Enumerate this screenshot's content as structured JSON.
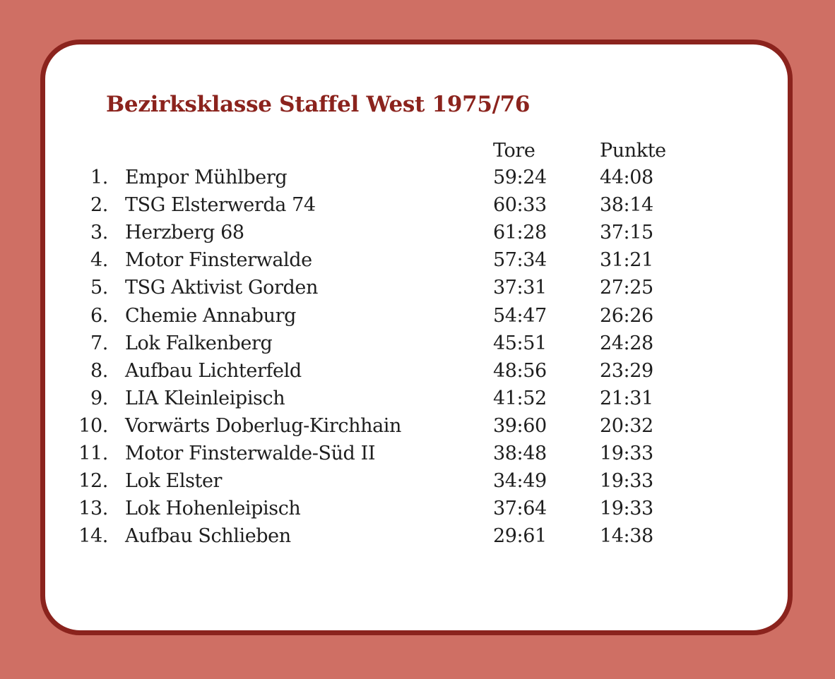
{
  "title": "Bezirksklasse Staffel West 1975/76",
  "columns": {
    "goals": "Tore",
    "points": "Punkte"
  },
  "table": [
    {
      "rank": "1.",
      "team": "Empor Mühlberg",
      "goals": "59:24",
      "points": "44:08"
    },
    {
      "rank": "2.",
      "team": "TSG Elsterwerda 74",
      "goals": "60:33",
      "points": "38:14"
    },
    {
      "rank": "3.",
      "team": "Herzberg 68",
      "goals": "61:28",
      "points": "37:15"
    },
    {
      "rank": "4.",
      "team": "Motor Finsterwalde",
      "goals": "57:34",
      "points": "31:21"
    },
    {
      "rank": "5.",
      "team": "TSG Aktivist Gorden",
      "goals": "37:31",
      "points": "27:25"
    },
    {
      "rank": "6.",
      "team": "Chemie Annaburg",
      "goals": "54:47",
      "points": "26:26"
    },
    {
      "rank": "7.",
      "team": "Lok Falkenberg",
      "goals": "45:51",
      "points": "24:28"
    },
    {
      "rank": "8.",
      "team": "Aufbau Lichterfeld",
      "goals": "48:56",
      "points": "23:29"
    },
    {
      "rank": "9.",
      "team": "LIA Kleinleipisch",
      "goals": "41:52",
      "points": "21:31"
    },
    {
      "rank": "10.",
      "team": "Vorwärts Doberlug-Kirchhain",
      "goals": "39:60",
      "points": "20:32"
    },
    {
      "rank": "11.",
      "team": "Motor Finsterwalde-Süd II",
      "goals": "38:48",
      "points": "19:33"
    },
    {
      "rank": "12.",
      "team": "Lok Elster",
      "goals": "34:49",
      "points": "19:33"
    },
    {
      "rank": "13.",
      "team": "Lok Hohenleipisch",
      "goals": "37:64",
      "points": "19:33"
    },
    {
      "rank": "14.",
      "team": "Aufbau Schlieben",
      "goals": "29:61",
      "points": "14:38"
    }
  ],
  "colors": {
    "background": "#cf6f64",
    "frame": "#8b231d",
    "card": "#ffffff",
    "title": "#8b231d",
    "text": "#1e1e1e"
  }
}
